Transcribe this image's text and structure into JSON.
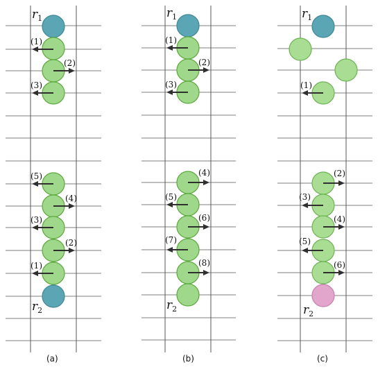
{
  "panels": [
    {
      "caption": "(a)",
      "robots": [
        {
          "name": "r",
          "sub": "1",
          "color": "teal"
        },
        {
          "name": "r",
          "sub": "2",
          "color": "teal"
        }
      ],
      "top_moves": [
        {
          "label": "(1)",
          "dir": "left"
        },
        {
          "label": "(2)",
          "dir": "right"
        },
        {
          "label": "(3)",
          "dir": "left"
        }
      ],
      "bottom_moves": [
        {
          "label": "(5)",
          "dir": "left"
        },
        {
          "label": "(4)",
          "dir": "right"
        },
        {
          "label": "(3)",
          "dir": "left"
        },
        {
          "label": "(2)",
          "dir": "right"
        },
        {
          "label": "(1)",
          "dir": "left"
        }
      ]
    },
    {
      "caption": "(b)",
      "robots": [
        {
          "name": "r",
          "sub": "1",
          "color": "teal"
        },
        {
          "name": "r",
          "sub": "2",
          "color": "green"
        }
      ],
      "top_moves": [
        {
          "label": "(1)",
          "dir": "left"
        },
        {
          "label": "(2)",
          "dir": "right"
        },
        {
          "label": "(3)",
          "dir": "left"
        }
      ],
      "bottom_moves": [
        {
          "label": "(4)",
          "dir": "right"
        },
        {
          "label": "(5)",
          "dir": "left"
        },
        {
          "label": "(6)",
          "dir": "right"
        },
        {
          "label": "(7)",
          "dir": "left"
        },
        {
          "label": "(8)",
          "dir": "right"
        }
      ]
    },
    {
      "caption": "(c)",
      "robots": [
        {
          "name": "r",
          "sub": "1",
          "color": "teal"
        },
        {
          "name": "r",
          "sub": "2",
          "color": "pink"
        }
      ],
      "top_moves": [
        {
          "label": "(1)",
          "dir": "left"
        }
      ],
      "bottom_moves": [
        {
          "label": "(2)",
          "dir": "right"
        },
        {
          "label": "(3)",
          "dir": "left"
        },
        {
          "label": "(4)",
          "dir": "right"
        },
        {
          "label": "(5)",
          "dir": "left"
        },
        {
          "label": "(6)",
          "dir": "right"
        }
      ]
    }
  ],
  "colors": {
    "teal": "#5aa6b4",
    "green": "#9fd88a",
    "pink": "#e2a6cc"
  }
}
